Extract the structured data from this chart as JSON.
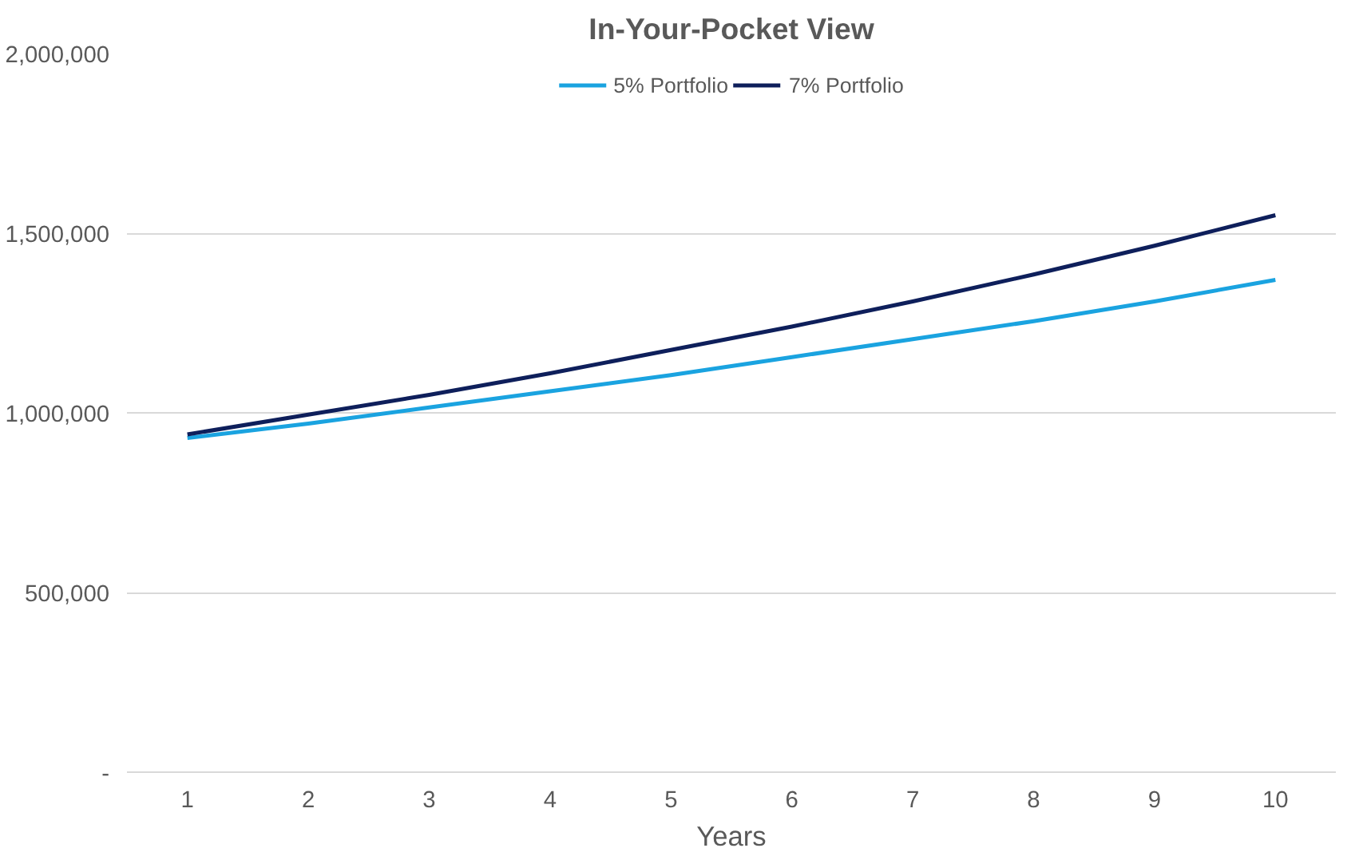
{
  "chart_data": {
    "type": "line",
    "title": "In-Your-Pocket View",
    "xlabel": "Years",
    "categories": [
      "1",
      "2",
      "3",
      "4",
      "5",
      "6",
      "7",
      "8",
      "9",
      "10"
    ],
    "series": [
      {
        "name": "5% Portfolio",
        "color": "#1aa3e0",
        "values": [
          930000,
          970000,
          1015000,
          1060000,
          1105000,
          1155000,
          1205000,
          1255000,
          1310000,
          1370000
        ]
      },
      {
        "name": "7% Portfolio",
        "color": "#0e1f5b",
        "values": [
          940000,
          995000,
          1050000,
          1110000,
          1175000,
          1240000,
          1310000,
          1385000,
          1465000,
          1550000
        ]
      }
    ],
    "ylim": [
      0,
      2000000
    ],
    "yticks": [
      {
        "value": 0,
        "label": "-"
      },
      {
        "value": 500000,
        "label": "500,000"
      },
      {
        "value": 1000000,
        "label": "1,000,000"
      },
      {
        "value": 1500000,
        "label": "1,500,000"
      },
      {
        "value": 2000000,
        "label": "2,000,000"
      }
    ],
    "grid": "y",
    "legend": "top",
    "line_style": "solid",
    "marker": "none"
  }
}
